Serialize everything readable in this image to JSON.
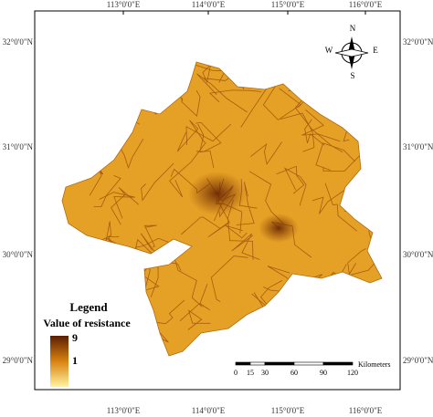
{
  "graticule": {
    "longitudes": [
      "113°0'0\"E",
      "114°0'0\"E",
      "115°0'0\"E",
      "116°0'0\"E"
    ],
    "latitudes": [
      "32°0'0\"N",
      "31°0'0\"N",
      "30°0'0\"N",
      "29°0'0\"N"
    ]
  },
  "compass": {
    "north": "N",
    "south": "S",
    "east": "E",
    "west": "W"
  },
  "legend": {
    "title": "Legend",
    "subtitle": "Value of resistance",
    "max": 9,
    "min": 1
  },
  "scale_bar": {
    "ticks": [
      0,
      15,
      30,
      60,
      90,
      120
    ],
    "unit": "Kilometers"
  }
}
